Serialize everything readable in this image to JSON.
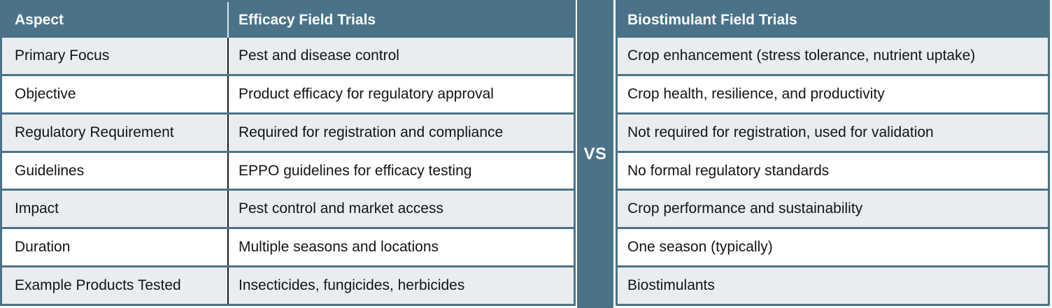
{
  "left_table": {
    "headers": [
      "Aspect",
      "Efficacy Field Trials"
    ],
    "rows": [
      {
        "aspect": "Primary Focus",
        "value": "Pest and disease control"
      },
      {
        "aspect": "Objective",
        "value": "Product efficacy for regulatory approval"
      },
      {
        "aspect": "Regulatory Requirement",
        "value": "Required for registration and compliance"
      },
      {
        "aspect": "Guidelines",
        "value": "EPPO guidelines for efficacy testing"
      },
      {
        "aspect": "Impact",
        "value": "Pest control and market access"
      },
      {
        "aspect": "Duration",
        "value": "Multiple seasons and locations"
      },
      {
        "aspect": "Example Products Tested",
        "value": "Insecticides, fungicides, herbicides"
      }
    ]
  },
  "vs_label": "VS",
  "right_table": {
    "header": "Biostimulant Field Trials",
    "rows": [
      "Crop enhancement (stress tolerance, nutrient uptake)",
      "Crop health, resilience, and productivity",
      "Not required for registration, used for validation",
      "No formal regulatory standards",
      "Crop performance and sustainability",
      "One season (typically)",
      "Biostimulants"
    ]
  },
  "colors": {
    "teal": "#4a7389",
    "row_alt": "#e9edf0",
    "row_white": "#ffffff",
    "text": "#141414",
    "header_text": "#ffffff",
    "divider_dark": "#1c1c1c",
    "divider_light": "#d9e3e8",
    "page_bg": "#ffffff"
  }
}
